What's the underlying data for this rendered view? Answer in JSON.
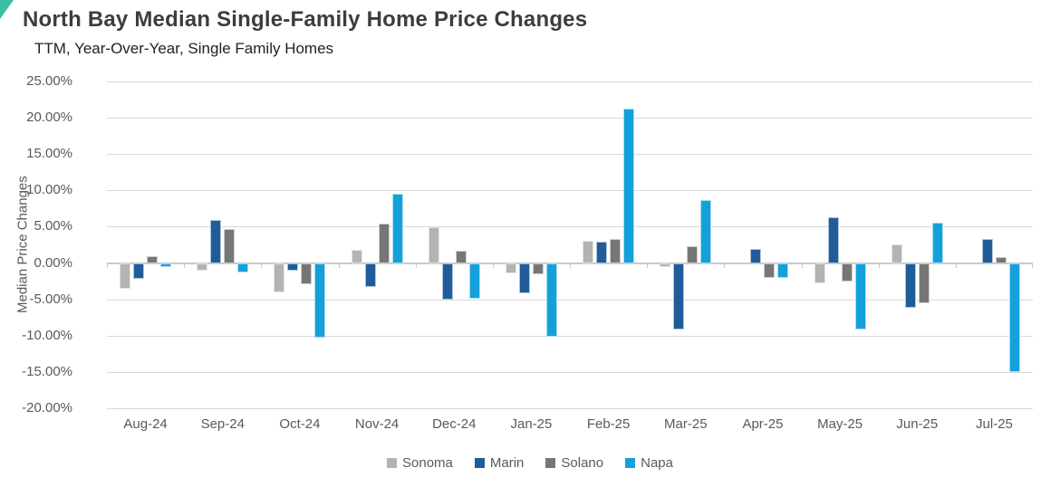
{
  "header": {
    "title": "North Bay Median Single-Family Home Price Changes",
    "subtitle": "TTM, Year-Over-Year, Single Family Homes"
  },
  "chart_data": {
    "type": "bar",
    "title": "North Bay Median Single-Family Home Price Changes",
    "subtitle": "TTM, Year-Over-Year, Single Family Homes",
    "xlabel": "",
    "ylabel": "Median Price Changes",
    "ylim": [
      -20,
      25
    ],
    "ytick_values": [
      25,
      20,
      15,
      10,
      5,
      0,
      -5,
      -10,
      -15,
      -20
    ],
    "ytick_labels": [
      "25.00%",
      "20.00%",
      "15.00%",
      "10.00%",
      "5.00%",
      "0.00%",
      "-5.00%",
      "-10.00%",
      "-15.00%",
      "-20.00%"
    ],
    "grid": true,
    "legend_position": "bottom",
    "value_unit": "percent",
    "categories": [
      "Aug-24",
      "Sep-24",
      "Oct-24",
      "Nov-24",
      "Dec-24",
      "Jan-25",
      "Feb-25",
      "Mar-25",
      "Apr-25",
      "May-25",
      "Jun-25",
      "Jul-25"
    ],
    "series": [
      {
        "name": "Sonoma",
        "color": "#b3b3b3",
        "values": [
          -3.6,
          -1.1,
          -4.0,
          1.8,
          4.9,
          -1.4,
          3.0,
          -0.5,
          0.0,
          -2.8,
          2.6,
          0.0
        ]
      },
      {
        "name": "Marin",
        "color": "#1f5c99",
        "values": [
          -2.2,
          5.9,
          -1.1,
          -3.3,
          -5.0,
          -4.2,
          2.9,
          -9.2,
          2.0,
          6.3,
          -6.2,
          3.3
        ]
      },
      {
        "name": "Solano",
        "color": "#767676",
        "values": [
          0.9,
          4.7,
          -2.9,
          5.4,
          1.7,
          -1.6,
          3.3,
          2.3,
          -2.0,
          -2.5,
          -5.5,
          0.8
        ]
      },
      {
        "name": "Napa",
        "color": "#14a0db",
        "values": [
          -0.5,
          -1.3,
          -10.3,
          9.6,
          -4.9,
          -10.2,
          21.3,
          8.7,
          -2.1,
          -9.2,
          5.5,
          -15.0
        ]
      }
    ]
  },
  "colors": {
    "corner_accent": "#3bbfa3",
    "gridline": "#d9d9d9",
    "zero_line": "#c9c9c9",
    "axis_text": "#595959",
    "title_text": "#3d3d3d"
  }
}
